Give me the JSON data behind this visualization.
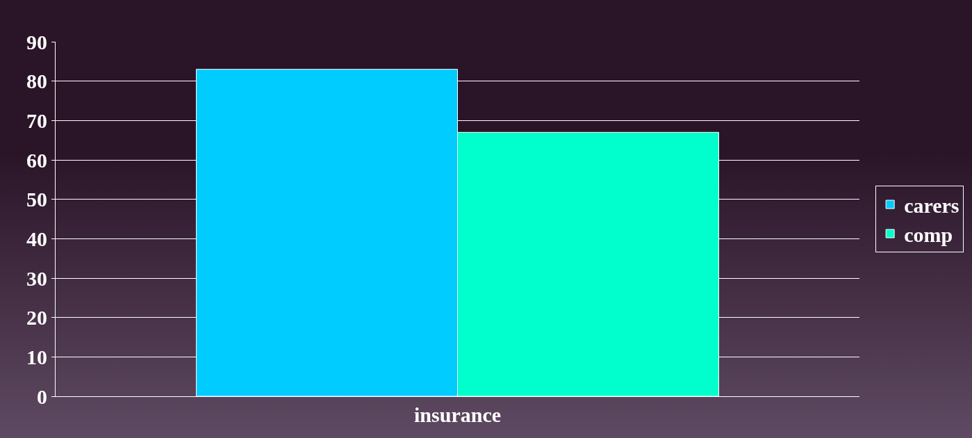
{
  "chart_data": {
    "type": "bar",
    "categories": [
      "insurance"
    ],
    "series": [
      {
        "name": "carers",
        "color": "#00ccff",
        "values": [
          83
        ]
      },
      {
        "name": "comp",
        "color": "#00ffcc",
        "values": [
          67
        ]
      }
    ],
    "ylim": [
      0,
      90
    ],
    "yticks": [
      0,
      10,
      20,
      30,
      40,
      50,
      60,
      70,
      80,
      90
    ],
    "grid": "y",
    "legend": "right"
  }
}
